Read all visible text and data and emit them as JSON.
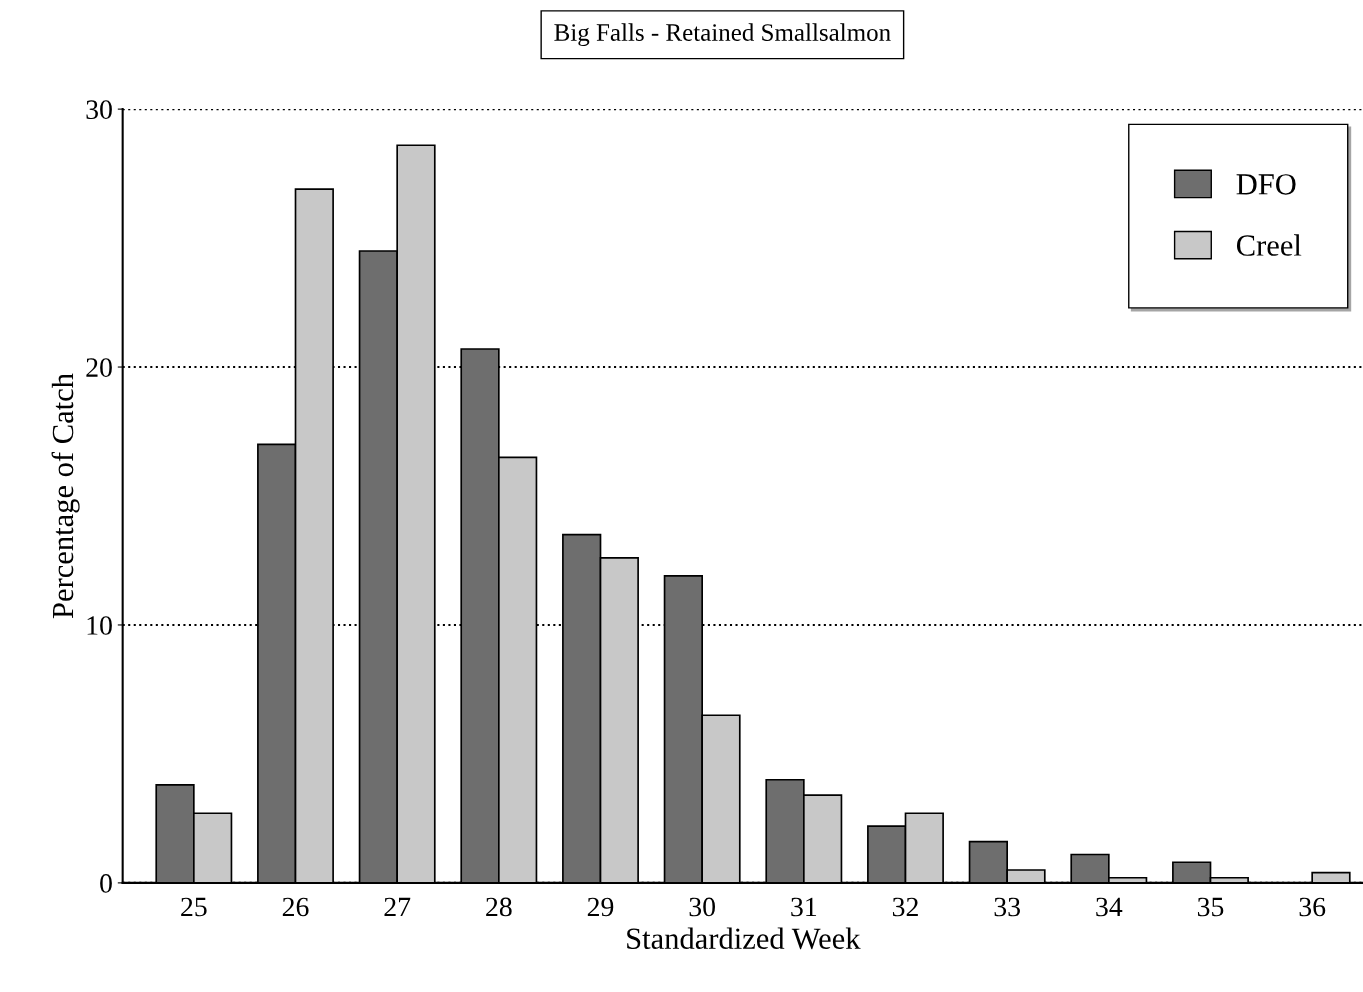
{
  "chart_data": {
    "type": "bar",
    "title": "Big Falls - Retained Smallsalmon",
    "xlabel": "Standardized Week",
    "ylabel": "Percentage of Catch",
    "categories": [
      "25",
      "26",
      "27",
      "28",
      "29",
      "30",
      "31",
      "32",
      "33",
      "34",
      "35",
      "36"
    ],
    "series": [
      {
        "name": "DFO",
        "color": "#6e6e6e",
        "values": [
          3.8,
          17.0,
          24.5,
          20.7,
          13.5,
          11.9,
          4.0,
          2.2,
          1.6,
          1.1,
          0.8,
          null
        ]
      },
      {
        "name": "Creel",
        "color": "#c8c8c8",
        "values": [
          2.7,
          26.9,
          28.6,
          16.5,
          12.6,
          6.5,
          3.4,
          2.7,
          0.5,
          0.2,
          0.2,
          0.4
        ]
      }
    ],
    "ylim": [
      0,
      30
    ],
    "yticks": [
      0,
      10,
      20,
      30
    ],
    "grid": "y",
    "legend": "top right"
  }
}
